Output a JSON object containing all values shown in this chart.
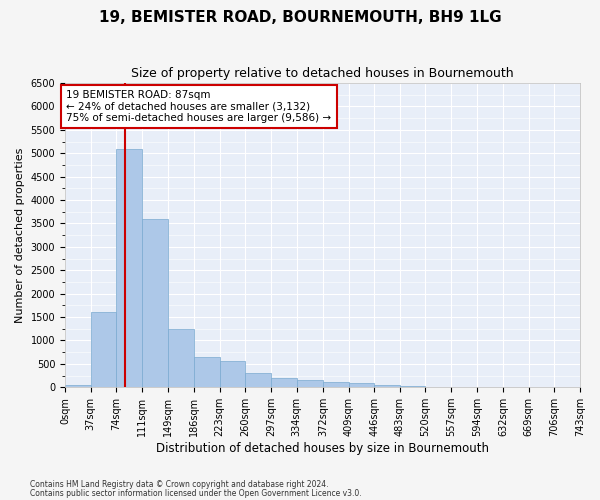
{
  "title": "19, BEMISTER ROAD, BOURNEMOUTH, BH9 1LG",
  "subtitle": "Size of property relative to detached houses in Bournemouth",
  "xlabel": "Distribution of detached houses by size in Bournemouth",
  "ylabel": "Number of detached properties",
  "bin_edges": [
    0,
    37,
    74,
    111,
    149,
    186,
    223,
    260,
    297,
    334,
    372,
    409,
    446,
    483,
    520,
    557,
    594,
    632,
    669,
    706,
    743
  ],
  "bar_heights": [
    50,
    1600,
    5100,
    3600,
    1250,
    650,
    550,
    300,
    200,
    150,
    120,
    80,
    50,
    20,
    15,
    10,
    8,
    5,
    3,
    2
  ],
  "bar_color": "#adc8e8",
  "bar_edge_color": "#7aaad0",
  "ylim": [
    0,
    6500
  ],
  "yticks": [
    0,
    500,
    1000,
    1500,
    2000,
    2500,
    3000,
    3500,
    4000,
    4500,
    5000,
    5500,
    6000,
    6500
  ],
  "property_size": 87,
  "vline_color": "#cc0000",
  "annotation_line1": "19 BEMISTER ROAD: 87sqm",
  "annotation_line2": "← 24% of detached houses are smaller (3,132)",
  "annotation_line3": "75% of semi-detached houses are larger (9,586) →",
  "annotation_box_edge_color": "#cc0000",
  "plot_bg_color": "#e8eef8",
  "grid_color": "#ffffff",
  "fig_bg_color": "#f5f5f5",
  "footnote1": "Contains HM Land Registry data © Crown copyright and database right 2024.",
  "footnote2": "Contains public sector information licensed under the Open Government Licence v3.0.",
  "title_fontsize": 11,
  "subtitle_fontsize": 9,
  "xlabel_fontsize": 8.5,
  "ylabel_fontsize": 8,
  "tick_fontsize": 7,
  "annot_fontsize": 7.5,
  "footnote_fontsize": 5.5
}
